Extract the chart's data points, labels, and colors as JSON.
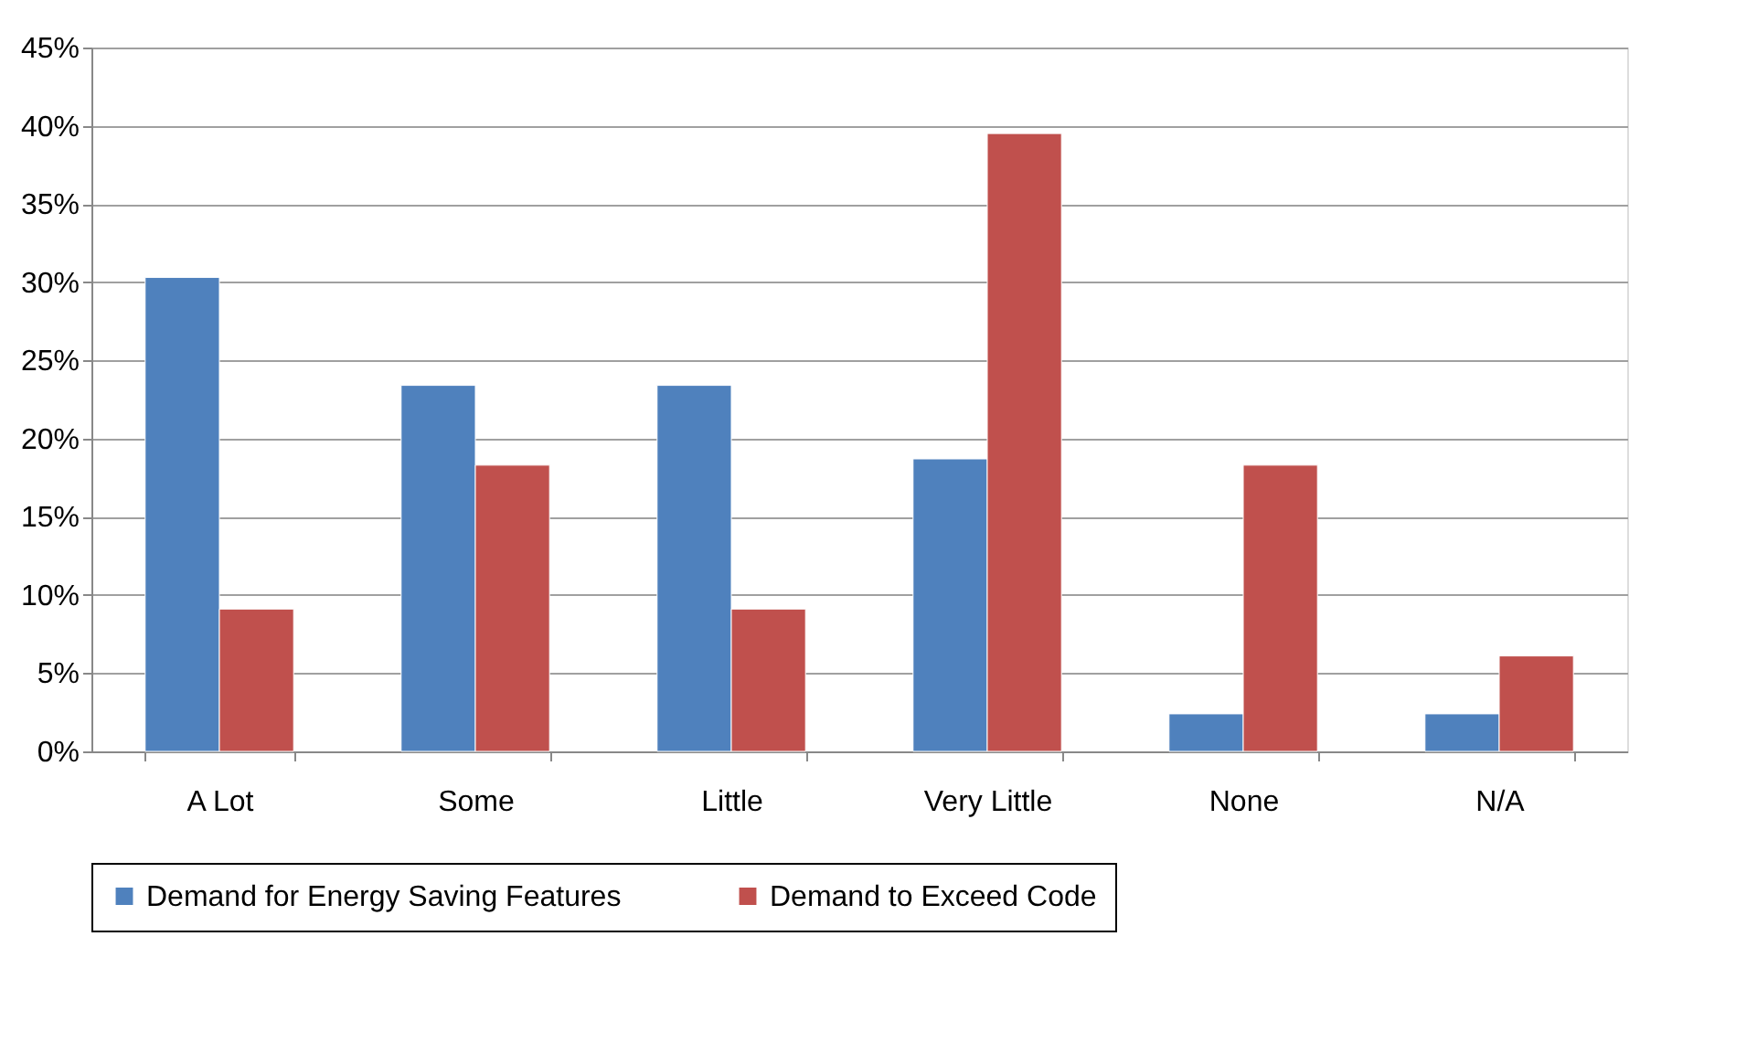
{
  "chart_data": {
    "type": "bar",
    "categories": [
      "A Lot",
      "Some",
      "Little",
      "Very Little",
      "None",
      "N/A"
    ],
    "series": [
      {
        "name": "Demand for Energy Saving Features",
        "color": "#4f81bd",
        "values": [
          30.3,
          23.4,
          23.4,
          18.7,
          2.4,
          2.4
        ]
      },
      {
        "name": "Demand to Exceed Code",
        "color": "#c0504d",
        "values": [
          9.1,
          18.3,
          9.1,
          39.5,
          18.3,
          6.1
        ]
      }
    ],
    "ylim": [
      0,
      45
    ],
    "yticks": [
      {
        "value": 0,
        "label": "0%"
      },
      {
        "value": 5,
        "label": "5%"
      },
      {
        "value": 10,
        "label": "10%"
      },
      {
        "value": 15,
        "label": "15%"
      },
      {
        "value": 20,
        "label": "20%"
      },
      {
        "value": 25,
        "label": "25%"
      },
      {
        "value": 30,
        "label": "30%"
      },
      {
        "value": 35,
        "label": "35%"
      },
      {
        "value": 40,
        "label": "40%"
      },
      {
        "value": 45,
        "label": "45%"
      }
    ],
    "grid": "y",
    "legend": "bottom"
  }
}
